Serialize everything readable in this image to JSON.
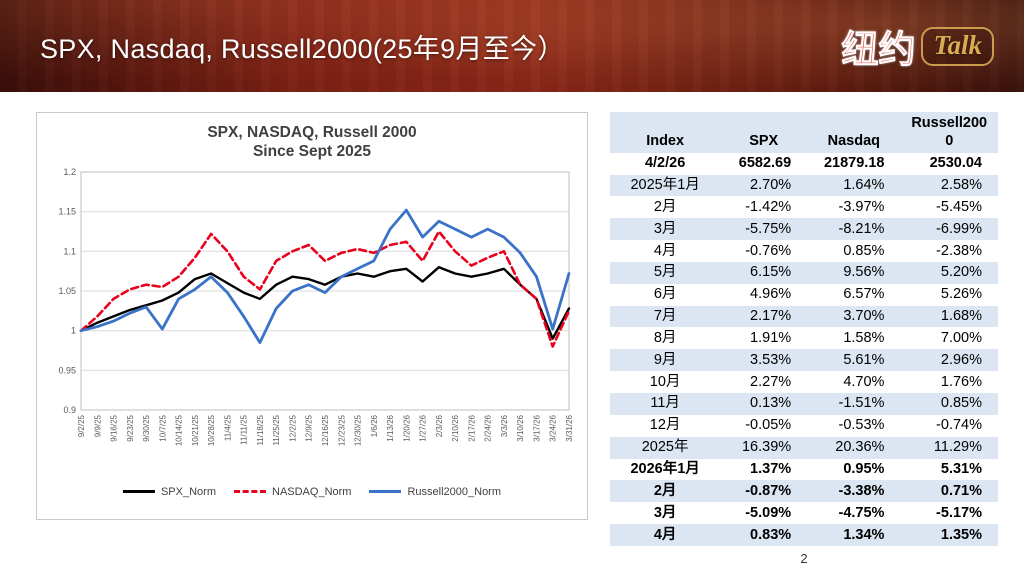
{
  "header": {
    "title": "SPX, Nasdaq, Russell2000(25年9月至今）"
  },
  "logo": {
    "cn": "纽约",
    "talk": "Talk"
  },
  "colors": {
    "banner_red": "#7C2014",
    "logo_red": "#E63529",
    "logo_gold": "#C99D4D",
    "table_band": "#DCE5F2",
    "spx_line": "#000000",
    "nasdaq_line": "#E8001C",
    "russell_line": "#3A72C8"
  },
  "chart_data": {
    "type": "line",
    "title_line1": "SPX, NASDAQ, Russell 2000",
    "title_line2": "Since Sept 2025",
    "xlabel": "",
    "ylabel": "",
    "ylim": [
      0.9,
      1.2
    ],
    "y_tick_step": 0.05,
    "grid": true,
    "legend_position": "bottom",
    "x": [
      "9/2/25",
      "9/9/25",
      "9/16/25",
      "9/23/25",
      "9/30/25",
      "10/7/25",
      "10/14/25",
      "10/21/25",
      "10/28/25",
      "11/4/25",
      "11/11/25",
      "11/18/25",
      "11/25/25",
      "12/2/25",
      "12/9/25",
      "12/16/25",
      "12/23/25",
      "12/30/25",
      "1/6/26",
      "1/13/26",
      "1/20/26",
      "1/27/26",
      "2/3/26",
      "2/10/26",
      "2/17/26",
      "2/24/26",
      "3/3/26",
      "3/10/26",
      "3/17/26",
      "3/24/26",
      "3/31/26"
    ],
    "series": [
      {
        "name": "SPX_Norm",
        "color": "#000000",
        "width": 2.4,
        "dash": "",
        "values": [
          1.0,
          1.01,
          1.018,
          1.026,
          1.032,
          1.038,
          1.048,
          1.065,
          1.072,
          1.06,
          1.048,
          1.04,
          1.058,
          1.068,
          1.065,
          1.058,
          1.068,
          1.072,
          1.068,
          1.075,
          1.078,
          1.062,
          1.08,
          1.072,
          1.068,
          1.072,
          1.078,
          1.058,
          1.04,
          0.99,
          1.028
        ]
      },
      {
        "name": "NASDAQ_Norm",
        "color": "#E8001C",
        "width": 2.6,
        "dash": "7 4",
        "values": [
          1.0,
          1.018,
          1.04,
          1.052,
          1.058,
          1.055,
          1.068,
          1.092,
          1.122,
          1.1,
          1.068,
          1.052,
          1.088,
          1.1,
          1.108,
          1.088,
          1.098,
          1.103,
          1.098,
          1.108,
          1.112,
          1.088,
          1.125,
          1.1,
          1.082,
          1.092,
          1.1,
          1.058,
          1.04,
          0.98,
          1.025
        ]
      },
      {
        "name": "Russell2000_Norm",
        "color": "#3A72C8",
        "width": 2.8,
        "dash": "",
        "values": [
          1.0,
          1.005,
          1.012,
          1.022,
          1.03,
          1.002,
          1.04,
          1.052,
          1.068,
          1.048,
          1.018,
          0.985,
          1.028,
          1.05,
          1.058,
          1.048,
          1.068,
          1.078,
          1.088,
          1.128,
          1.152,
          1.118,
          1.138,
          1.128,
          1.118,
          1.128,
          1.118,
          1.098,
          1.068,
          1.002,
          1.072
        ]
      }
    ]
  },
  "table": {
    "headers": [
      "Index",
      "SPX",
      "Nasdaq",
      "Russell2000"
    ],
    "rows": [
      {
        "cells": [
          "4/2/26",
          "6582.69",
          "21879.18",
          "2530.04"
        ],
        "bold": true
      },
      {
        "cells": [
          "2025年1月",
          "2.70%",
          "1.64%",
          "2.58%"
        ],
        "bold": false
      },
      {
        "cells": [
          "2月",
          "-1.42%",
          "-3.97%",
          "-5.45%"
        ],
        "bold": false
      },
      {
        "cells": [
          "3月",
          "-5.75%",
          "-8.21%",
          "-6.99%"
        ],
        "bold": false
      },
      {
        "cells": [
          "4月",
          "-0.76%",
          "0.85%",
          "-2.38%"
        ],
        "bold": false
      },
      {
        "cells": [
          "5月",
          "6.15%",
          "9.56%",
          "5.20%"
        ],
        "bold": false
      },
      {
        "cells": [
          "6月",
          "4.96%",
          "6.57%",
          "5.26%"
        ],
        "bold": false
      },
      {
        "cells": [
          "7月",
          "2.17%",
          "3.70%",
          "1.68%"
        ],
        "bold": false
      },
      {
        "cells": [
          "8月",
          "1.91%",
          "1.58%",
          "7.00%"
        ],
        "bold": false
      },
      {
        "cells": [
          "9月",
          "3.53%",
          "5.61%",
          "2.96%"
        ],
        "bold": false
      },
      {
        "cells": [
          "10月",
          "2.27%",
          "4.70%",
          "1.76%"
        ],
        "bold": false
      },
      {
        "cells": [
          "11月",
          "0.13%",
          "-1.51%",
          "0.85%"
        ],
        "bold": false
      },
      {
        "cells": [
          "12月",
          "-0.05%",
          "-0.53%",
          "-0.74%"
        ],
        "bold": false
      },
      {
        "cells": [
          "2025年",
          "16.39%",
          "20.36%",
          "11.29%"
        ],
        "bold": false
      },
      {
        "cells": [
          "2026年1月",
          "1.37%",
          "0.95%",
          "5.31%"
        ],
        "bold": true
      },
      {
        "cells": [
          "2月",
          "-0.87%",
          "-3.38%",
          "0.71%"
        ],
        "bold": true
      },
      {
        "cells": [
          "3月",
          "-5.09%",
          "-4.75%",
          "-5.17%"
        ],
        "bold": true
      },
      {
        "cells": [
          "4月",
          "0.83%",
          "1.34%",
          "1.35%"
        ],
        "bold": true
      }
    ]
  },
  "page_number": "2"
}
